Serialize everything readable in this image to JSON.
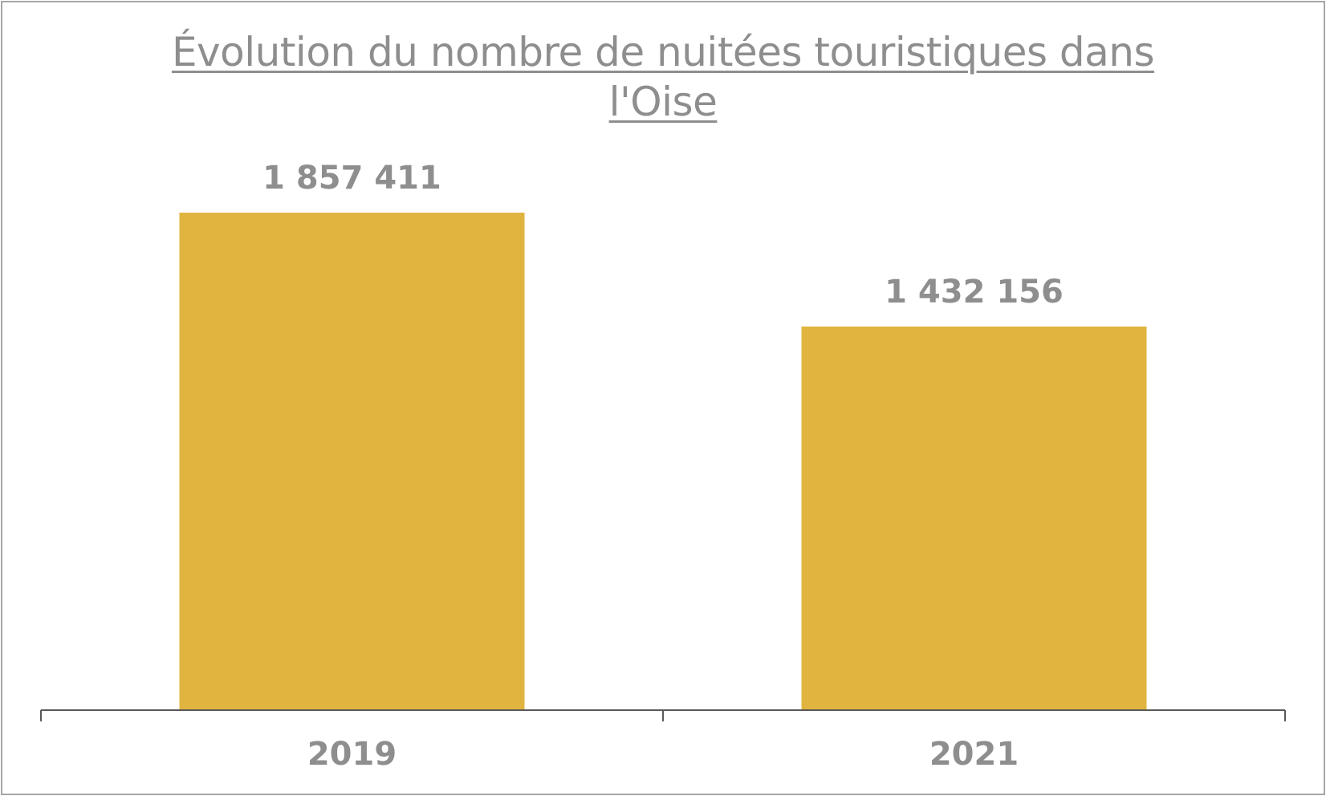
{
  "chart_data": {
    "type": "bar",
    "title": "Évolution du nombre de nuitées touristiques dans l'Oise",
    "categories": [
      "2019",
      "2021"
    ],
    "values": [
      1857411,
      1432156
    ],
    "value_labels": [
      "1 857 411",
      "1 432 156"
    ],
    "xlabel": "",
    "ylabel": "",
    "ylim": [
      0,
      2000000
    ],
    "grid": false,
    "legend": "none",
    "y_axis_visible": false,
    "bar_color": "#E1B43F",
    "text_color": "#8E8E8E",
    "axis_color": "#595959"
  }
}
